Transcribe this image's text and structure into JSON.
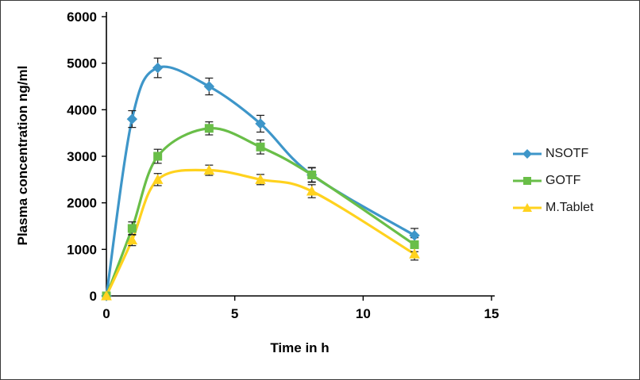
{
  "chart_data": {
    "type": "line",
    "title": "",
    "xlabel": "Time  in h",
    "ylabel": "Plasma concentration ng/ml",
    "xlim": [
      0,
      15
    ],
    "ylim": [
      0,
      6000
    ],
    "xticks": [
      0,
      5,
      10,
      15
    ],
    "yticks": [
      0,
      1000,
      2000,
      3000,
      4000,
      5000,
      6000
    ],
    "grid": false,
    "legend_position": "right",
    "x": [
      0,
      1,
      2,
      4,
      6,
      8,
      12
    ],
    "series": [
      {
        "name": "NSOTF",
        "color": "#3E96C9",
        "marker": "diamond",
        "values": [
          0,
          3800,
          4900,
          4500,
          3700,
          2600,
          1300
        ],
        "errors": [
          0,
          180,
          210,
          180,
          180,
          160,
          150
        ]
      },
      {
        "name": "GOTF",
        "color": "#69BE48",
        "marker": "square",
        "values": [
          0,
          1450,
          3000,
          3600,
          3200,
          2600,
          1100
        ],
        "errors": [
          0,
          140,
          150,
          140,
          150,
          150,
          150
        ]
      },
      {
        "name": "M.Tablet",
        "color": "#FFD21E",
        "marker": "triangle",
        "values": [
          0,
          1200,
          2500,
          2700,
          2500,
          2250,
          900
        ],
        "errors": [
          0,
          120,
          130,
          110,
          110,
          140,
          130
        ]
      }
    ]
  }
}
